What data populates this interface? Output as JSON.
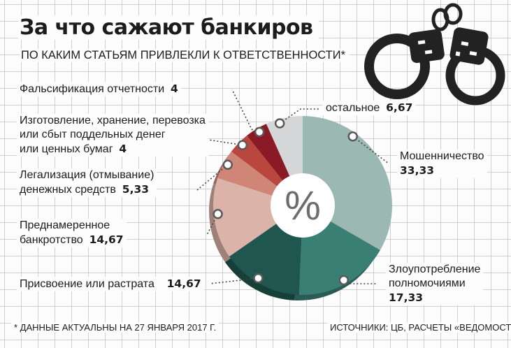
{
  "header": {
    "title": "За что сажают банкиров",
    "subtitle": "ПО КАКИМ СТАТЬЯМ ПРИВЛЕКЛИ К ОТВЕТСТВЕННОСТИ*"
  },
  "center_symbol": "%",
  "footer": {
    "note": "* ДАННЫЕ АКТУАЛЬНЫ НА 27 ЯНВАРЯ 2017 Г.",
    "sources": "ИСТОЧНИКИ: ЦБ, РАСЧЕТЫ «ВЕДОМОСТЕЙ»"
  },
  "chart_data": {
    "type": "pie",
    "unit": "%",
    "title": "За что сажают банкиров",
    "subtitle": "ПО КАКИМ СТАТЬЯМ ПРИВЛЕКЛИ К ОТВЕТСТВЕННОСТИ*",
    "slices": [
      {
        "label": "Мошенничество",
        "label_lines": [
          "Мошенничество"
        ],
        "value": 33.33,
        "value_text": "33,33",
        "color": "#9cb8b3"
      },
      {
        "label": "Злоупотребление полномочиями",
        "label_lines": [
          "Злоупотребление",
          "полномочиями"
        ],
        "value": 17.33,
        "value_text": "17,33",
        "color": "#3a7f74"
      },
      {
        "label": "Присвоение или растрата",
        "label_lines": [
          "Присвоение или растрата"
        ],
        "value": 14.67,
        "value_text": "14,67",
        "color": "#1f5750"
      },
      {
        "label": "Преднамеренное банкротство",
        "label_lines": [
          "Преднамеренное",
          "банкротство"
        ],
        "value": 14.67,
        "value_text": "14,67",
        "color": "#dcb3a8"
      },
      {
        "label": "Легализация (отмывание) денежных средств",
        "label_lines": [
          "Легализация (отмывание)",
          "денежных средств"
        ],
        "value": 5.33,
        "value_text": "5,33",
        "color": "#cf8677"
      },
      {
        "label": "Изготовление, хранение, перевозка или сбыт поддельных денег или ценных бумаг",
        "label_lines": [
          "Изготовление, хранение, перевозка",
          "или сбыт поддельных денег",
          "или ценных бумаг"
        ],
        "value": 4,
        "value_text": "4",
        "color": "#b9463f"
      },
      {
        "label": "Фальсификация отчетности",
        "label_lines": [
          "Фальсификация отчетности"
        ],
        "value": 4,
        "value_text": "4",
        "color": "#8a1a26"
      },
      {
        "label": "остальное",
        "label_lines": [
          "остальное"
        ],
        "value": 6.67,
        "value_text": "6,67",
        "color": "#d4d6d7"
      }
    ]
  }
}
